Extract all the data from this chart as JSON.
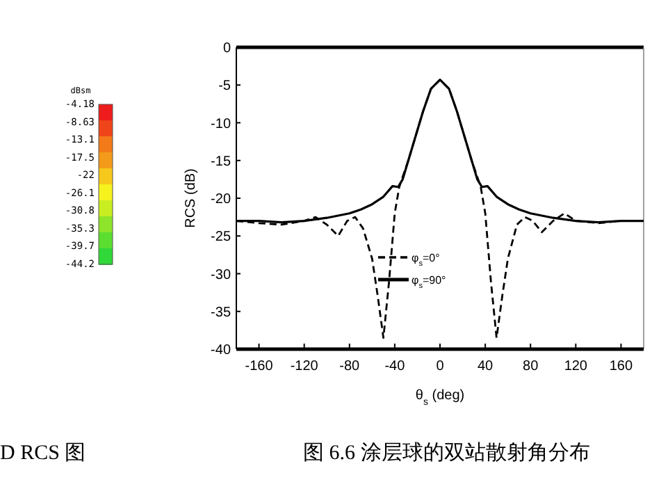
{
  "chart_data": [
    {
      "type": "other",
      "title": "dBsm",
      "colors": [
        "#ee1c1c",
        "#f0441a",
        "#f27a18",
        "#f39a1a",
        "#f7c81c",
        "#f6f21e",
        "#c8ee22",
        "#8ee42a",
        "#5cde30",
        "#30d83a"
      ],
      "annotations": [
        "-4.18",
        "-8.63",
        "-13.1",
        "-17.5",
        "-22",
        "-26.1",
        "-30.8",
        "-35.3",
        "-39.7",
        "-44.2",
        "D RCS 图"
      ]
    },
    {
      "type": "line",
      "xlabel": "θ$_{s}$ (deg)",
      "ylabel": "RCS (dB)",
      "xlim": [
        -180,
        180
      ],
      "ylim": [
        -40,
        0
      ],
      "xticks": [
        -160,
        -120,
        -80,
        -40,
        0,
        40,
        80,
        120,
        160
      ],
      "yticks": [
        0,
        -5,
        -10,
        -15,
        -20,
        -25,
        -30,
        -35,
        -40
      ],
      "legend": "center",
      "annotations": [
        "图 6.6 涂层球的双站散射角分布"
      ],
      "series": [
        {
          "name": "φ$_{s}$=0°",
          "color": "#000000",
          "line_style": "dashed",
          "x": [
            -180,
            -160,
            -140,
            -120,
            -110,
            -100,
            -90,
            -82,
            -75,
            -68,
            -60,
            -55,
            -50,
            -45,
            -40,
            -36,
            -28,
            -22,
            -15,
            -8,
            0,
            8,
            15,
            22,
            28,
            36,
            40,
            45,
            50,
            55,
            60,
            68,
            75,
            82,
            90,
            100,
            110,
            120,
            140,
            160,
            180
          ],
          "values": [
            -23,
            -23.3,
            -23.5,
            -23,
            -22.5,
            -23.5,
            -25,
            -23,
            -22.5,
            -24,
            -28,
            -33,
            -38.5,
            -31,
            -22,
            -18.5,
            -15,
            -12,
            -8.5,
            -5.5,
            -4.3,
            -5.5,
            -8.5,
            -12,
            -15,
            -18.5,
            -22,
            -31,
            -38.5,
            -33,
            -28,
            -23.5,
            -22.5,
            -23,
            -24.5,
            -23,
            -22,
            -23,
            -23.3,
            -23,
            -23
          ]
        },
        {
          "name": "φ$_{s}$=90°",
          "color": "#000000",
          "line_style": "solid",
          "x": [
            -180,
            -160,
            -140,
            -120,
            -100,
            -80,
            -70,
            -60,
            -50,
            -42,
            -37,
            -33,
            -28,
            -22,
            -15,
            -8,
            0,
            8,
            15,
            22,
            28,
            33,
            37,
            42,
            50,
            60,
            70,
            80,
            100,
            120,
            140,
            160,
            180
          ],
          "values": [
            -23,
            -23,
            -23.2,
            -23,
            -22.6,
            -22,
            -21.5,
            -20.8,
            -19.8,
            -18.4,
            -18.5,
            -17.5,
            -15,
            -12,
            -8.5,
            -5.5,
            -4.3,
            -5.5,
            -8.5,
            -12,
            -15,
            -17.5,
            -18.5,
            -18.4,
            -19.8,
            -20.8,
            -21.5,
            -22,
            -22.6,
            -23,
            -23.2,
            -23,
            -23
          ]
        }
      ]
    }
  ]
}
